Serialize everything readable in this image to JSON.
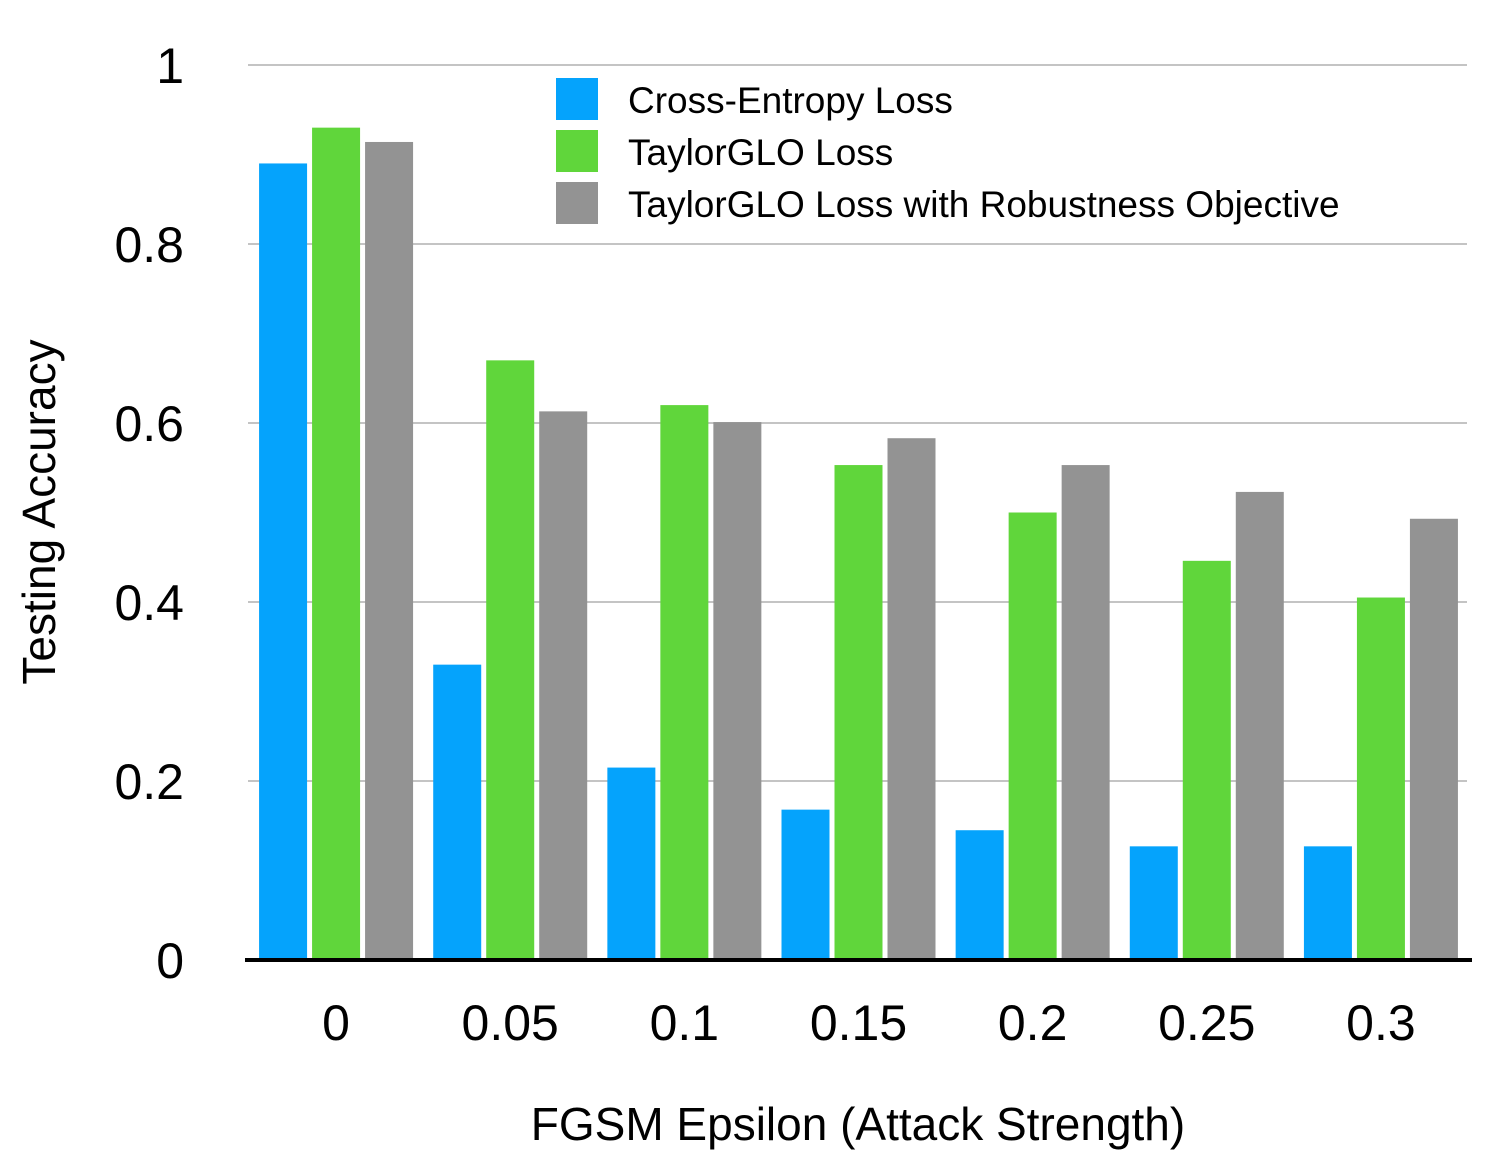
{
  "chart_data": {
    "type": "bar",
    "title": "",
    "xlabel": "FGSM Epsilon (Attack Strength)",
    "ylabel": "Testing Accuracy",
    "ylim": [
      0,
      1
    ],
    "yticks": [
      "0",
      "0.2",
      "0.4",
      "0.6",
      "0.8",
      "1"
    ],
    "grid": true,
    "legend_position": "top-right",
    "categories": [
      "0",
      "0.05",
      "0.1",
      "0.15",
      "0.2",
      "0.25",
      "0.3"
    ],
    "series": [
      {
        "name": "Cross-Entropy Loss",
        "color": "#05a3fc",
        "values": [
          0.89,
          0.33,
          0.215,
          0.168,
          0.145,
          0.127,
          0.127
        ]
      },
      {
        "name": "TaylorGLO Loss",
        "color": "#60d63b",
        "values": [
          0.93,
          0.67,
          0.62,
          0.553,
          0.5,
          0.446,
          0.405
        ]
      },
      {
        "name": "TaylorGLO Loss with Robustness Objective",
        "color": "#939393",
        "values": [
          0.914,
          0.613,
          0.601,
          0.583,
          0.553,
          0.523,
          0.493
        ]
      }
    ]
  }
}
